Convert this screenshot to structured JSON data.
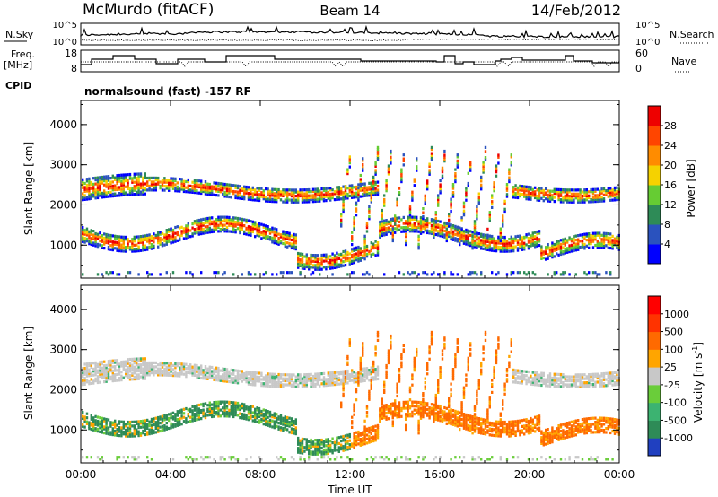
{
  "header": {
    "station": "McMurdo (fitACF)",
    "beam": "Beam 14",
    "date": "14/Feb/2012"
  },
  "noise_panel": {
    "left_label": "N.Sky",
    "right_label": "N.Search",
    "left_ticks": [
      "10^5",
      "10^0"
    ],
    "right_ticks": [
      "10^5",
      "10^0"
    ]
  },
  "freq_panel": {
    "left_label_1": "Freq.",
    "left_label_2": "[MHz]",
    "right_label": "Nave",
    "left_ticks": [
      "18",
      "8"
    ],
    "right_ticks": [
      "60",
      "0"
    ]
  },
  "cpid": {
    "label": "CPID",
    "text": "normalsound (fast) -157 RF"
  },
  "chart_data": [
    {
      "type": "heatmap",
      "name": "power",
      "ylabel": "Slant Range [km]",
      "ylim": [
        180,
        4600
      ],
      "yticks": [
        "1000",
        "2000",
        "3000",
        "4000"
      ],
      "colorbar_label": "Power [dB]",
      "colorbar_ticks": [
        "28",
        "24",
        "20",
        "16",
        "12",
        "8",
        "4"
      ],
      "colors": [
        "#0000ff",
        "#2a52be",
        "#2e8b57",
        "#66cc33",
        "#f5d200",
        "#ff8c00",
        "#ff4500",
        "#ee0000"
      ]
    },
    {
      "type": "heatmap",
      "name": "velocity",
      "ylabel": "Slant Range [km]",
      "ylim": [
        180,
        4600
      ],
      "yticks": [
        "1000",
        "2000",
        "3000",
        "4000"
      ],
      "colorbar_label": "Velocity [m s",
      "colorbar_label_sup": "-1",
      "colorbar_label_end": "]",
      "colorbar_ticks": [
        "1000",
        "500",
        "100",
        "25",
        "-25",
        "-100",
        "-500",
        "-1000"
      ],
      "colors": [
        "#2040c0",
        "#2e8b57",
        "#3cb371",
        "#6acd3a",
        "#c8c8c8",
        "#ffa500",
        "#ff6a00",
        "#ff3300",
        "#ff0000"
      ]
    }
  ],
  "x_axis": {
    "label": "Time UT",
    "ticks": [
      "00:00",
      "04:00",
      "08:00",
      "12:00",
      "16:00",
      "20:00",
      "00:00"
    ]
  }
}
